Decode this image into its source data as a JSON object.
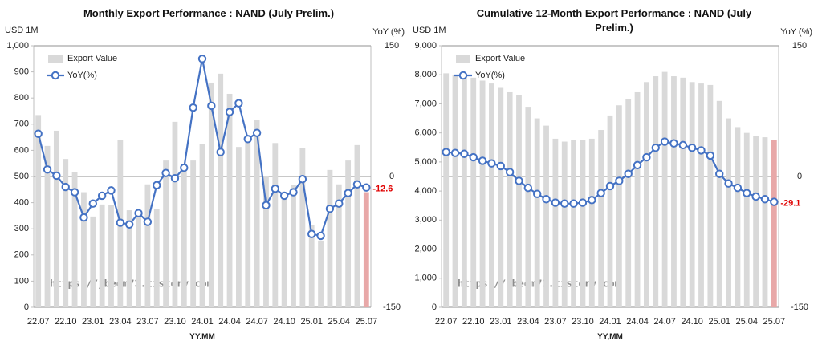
{
  "chart_data": [
    {
      "type": "bar",
      "title": "Monthly Export Performance : NAND (July Prelim.)",
      "ylabel": "USD 1M",
      "y2label": "YoY (%)",
      "xlabel": "YY.MM",
      "annotation": "https://jbeom73.tistory.com",
      "categories": [
        "22.07",
        null,
        null,
        "22.10",
        null,
        null,
        "23.01",
        null,
        null,
        "23.04",
        null,
        null,
        "23.07",
        null,
        null,
        "23.10",
        null,
        null,
        "24.01",
        null,
        null,
        "24.04",
        null,
        null,
        "24.07",
        null,
        null,
        "24.10",
        null,
        null,
        "25.01",
        null,
        null,
        "25.04",
        null,
        null,
        "25.07"
      ],
      "series": [
        {
          "name": "Export Value",
          "type": "bar",
          "color": "#d9d9d9",
          "highlight_color": "#e8a8a8",
          "values": [
            735,
            617,
            675,
            567,
            518,
            440,
            347,
            393,
            390,
            638,
            371,
            362,
            470,
            377,
            561,
            709,
            521,
            561,
            623,
            859,
            893,
            816,
            613,
            653,
            715,
            500,
            628,
            440,
            469,
            610,
            316,
            255,
            525,
            470,
            561,
            620,
            440
          ]
        },
        {
          "name": "YoY(%)",
          "type": "line",
          "axis": "y2",
          "color": "#4472c4",
          "values": [
            49,
            8,
            1,
            -12,
            -18,
            -47,
            -31,
            -22,
            -16,
            -53,
            -55,
            -42,
            -52,
            -10,
            4,
            -2,
            10,
            79,
            135,
            81,
            28,
            74,
            84,
            43,
            50,
            -33,
            -14,
            -22,
            -18,
            -3,
            -66,
            -68,
            -37,
            -31,
            -19,
            -9,
            -12.6
          ]
        }
      ],
      "end_label_color": "#e00000",
      "ylim": [
        0,
        1000
      ],
      "yticks": [
        0,
        100,
        200,
        300,
        400,
        500,
        600,
        700,
        800,
        900,
        {
          "value": 1000,
          "label": "1,000"
        }
      ],
      "y2lim": [
        -150,
        150
      ],
      "y2ticks": [
        -150,
        0,
        150
      ],
      "y2grid": true,
      "legend": "upper left"
    },
    {
      "type": "bar",
      "title": "Cumulative 12-Month Export Performance : NAND (July Prelim.)",
      "ylabel": "USD 1M",
      "y2label": "YoY (%)",
      "xlabel": "YY,MM",
      "annotation": "https://jbeom73.tistory.com",
      "categories": [
        "22.07",
        null,
        null,
        "22.10",
        null,
        null,
        "23.01",
        null,
        null,
        "23.04",
        null,
        null,
        "23.07",
        null,
        null,
        "23.10",
        null,
        null,
        "24.01",
        null,
        null,
        "24.04",
        null,
        null,
        "24.07",
        null,
        null,
        "24.10",
        null,
        null,
        "25.01",
        null,
        null,
        "25.04",
        null,
        null,
        "25.07"
      ],
      "series": [
        {
          "name": "Export Value",
          "type": "bar",
          "color": "#d9d9d9",
          "highlight_color": "#e8a8a8",
          "values": [
            8050,
            8000,
            7950,
            7900,
            7800,
            7700,
            7550,
            7400,
            7300,
            6900,
            6500,
            6250,
            5800,
            5700,
            5750,
            5750,
            5800,
            6100,
            6600,
            6950,
            7150,
            7400,
            7750,
            7950,
            8100,
            7950,
            7900,
            7750,
            7700,
            7650,
            7100,
            6500,
            6200,
            6000,
            5900,
            5850,
            5750
          ]
        },
        {
          "name": "YoY(%)",
          "type": "line",
          "axis": "y2",
          "color": "#4472c4",
          "values": [
            28,
            27,
            26,
            22,
            18,
            15,
            12,
            5,
            -5,
            -13,
            -20,
            -26,
            -30,
            -31,
            -31,
            -30,
            -27,
            -19,
            -11,
            -5,
            3,
            13,
            22,
            33,
            40,
            38,
            36,
            33,
            30,
            24,
            3,
            -8,
            -13,
            -19,
            -23,
            -26,
            -29.1
          ]
        }
      ],
      "end_label_color": "#e00000",
      "ylim": [
        0,
        9000
      ],
      "yticks": [
        0,
        {
          "value": 1000,
          "label": "1,000"
        },
        {
          "value": 2000,
          "label": "2,000"
        },
        {
          "value": 3000,
          "label": "3,000"
        },
        {
          "value": 4000,
          "label": "4,000"
        },
        {
          "value": 5000,
          "label": "5,000"
        },
        {
          "value": 6000,
          "label": "6,000"
        },
        {
          "value": 7000,
          "label": "7,000"
        },
        {
          "value": 8000,
          "label": "8,000"
        },
        {
          "value": 9000,
          "label": "9,000"
        }
      ],
      "y2lim": [
        -150,
        150
      ],
      "y2ticks": [
        -150,
        0,
        150
      ],
      "y2grid": true,
      "legend": "upper left"
    }
  ]
}
